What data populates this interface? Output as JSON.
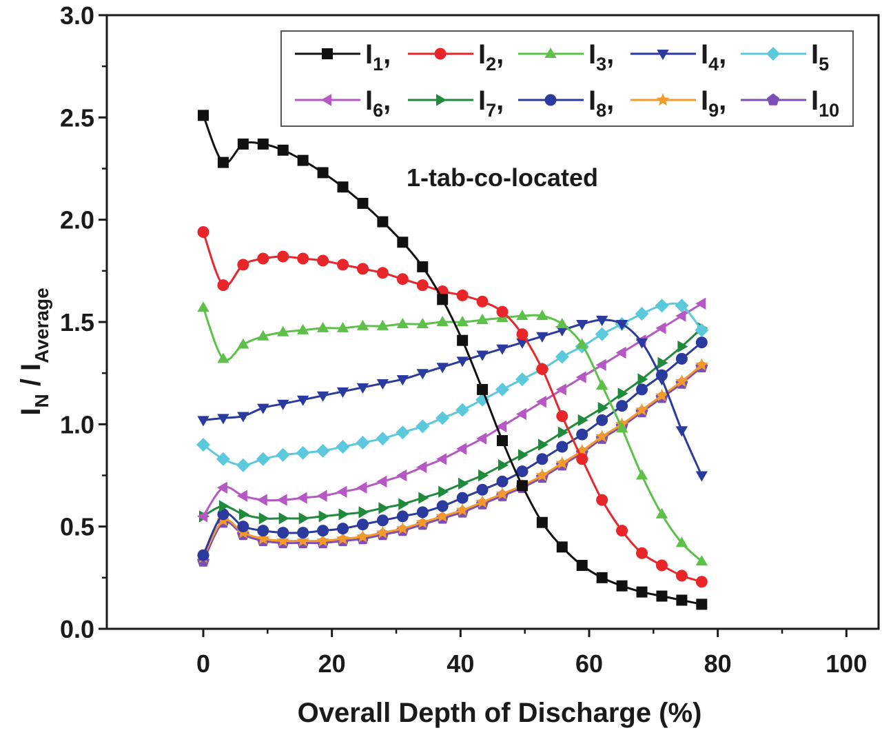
{
  "chart_data": {
    "type": "line",
    "title": "",
    "xlabel": "Overall Depth of Discharge (%)",
    "ylabel_main": "I",
    "ylabel_sub": "N",
    "ylabel_sep": " / I",
    "ylabel_sub2": "Average",
    "xlim": [
      -15,
      105
    ],
    "ylim": [
      0,
      3
    ],
    "xticks": [
      0,
      20,
      40,
      60,
      80,
      100
    ],
    "yticks": [
      0.0,
      0.5,
      1.0,
      1.5,
      2.0,
      2.5,
      3.0
    ],
    "xtick_labels": [
      "0",
      "20",
      "40",
      "60",
      "80",
      "100"
    ],
    "ytick_labels": [
      "0.0",
      "0.5",
      "1.0",
      "1.5",
      "2.0",
      "2.5",
      "3.0"
    ],
    "grid": false,
    "legend_position": "top-right",
    "annotation": "1-tab-co-located",
    "x": [
      0,
      3.1,
      6.2,
      9.3,
      12.4,
      15.5,
      18.6,
      21.7,
      24.8,
      27.9,
      31,
      34.1,
      37.2,
      40.3,
      43.4,
      46.5,
      49.6,
      52.7,
      55.8,
      58.9,
      62,
      65.1,
      68.2,
      71.3,
      74.4,
      77.5
    ],
    "series": [
      {
        "name": "I",
        "sub": "1",
        "sep": ",",
        "color": "#111111",
        "marker": "square",
        "values": [
          2.51,
          2.28,
          2.37,
          2.37,
          2.34,
          2.29,
          2.23,
          2.16,
          2.08,
          1.99,
          1.89,
          1.77,
          1.61,
          1.41,
          1.17,
          0.92,
          0.7,
          0.52,
          0.4,
          0.31,
          0.25,
          0.21,
          0.18,
          0.16,
          0.14,
          0.12
        ]
      },
      {
        "name": "I",
        "sub": "2",
        "sep": ",",
        "color": "#e8262a",
        "marker": "circle",
        "values": [
          1.94,
          1.68,
          1.78,
          1.81,
          1.82,
          1.81,
          1.8,
          1.78,
          1.76,
          1.74,
          1.71,
          1.68,
          1.65,
          1.63,
          1.6,
          1.55,
          1.44,
          1.27,
          1.04,
          0.83,
          0.63,
          0.48,
          0.37,
          0.31,
          0.26,
          0.23
        ]
      },
      {
        "name": "I",
        "sub": "3",
        "sep": ",",
        "color": "#5cc049",
        "marker": "triangle-up",
        "values": [
          1.57,
          1.32,
          1.39,
          1.43,
          1.45,
          1.46,
          1.47,
          1.47,
          1.48,
          1.48,
          1.49,
          1.49,
          1.5,
          1.5,
          1.51,
          1.52,
          1.53,
          1.53,
          1.49,
          1.39,
          1.19,
          0.98,
          0.75,
          0.56,
          0.42,
          0.33
        ]
      },
      {
        "name": "I",
        "sub": "4",
        "sep": ",",
        "color": "#2a3a9e",
        "marker": "triangle-down",
        "values": [
          1.02,
          1.03,
          1.04,
          1.08,
          1.1,
          1.12,
          1.14,
          1.16,
          1.18,
          1.2,
          1.22,
          1.25,
          1.28,
          1.31,
          1.34,
          1.37,
          1.4,
          1.43,
          1.46,
          1.49,
          1.51,
          1.49,
          1.4,
          1.22,
          0.97,
          0.75
        ]
      },
      {
        "name": "I",
        "sub": "5",
        "sep": "",
        "color": "#5bc8dc",
        "marker": "diamond",
        "values": [
          0.9,
          0.83,
          0.8,
          0.83,
          0.85,
          0.86,
          0.87,
          0.89,
          0.91,
          0.93,
          0.96,
          0.99,
          1.03,
          1.07,
          1.12,
          1.17,
          1.22,
          1.27,
          1.33,
          1.38,
          1.44,
          1.49,
          1.54,
          1.58,
          1.58,
          1.46
        ]
      },
      {
        "name": "I",
        "sub": "6",
        "sep": ",",
        "color": "#b658c4",
        "marker": "triangle-left",
        "values": [
          0.55,
          0.69,
          0.65,
          0.63,
          0.63,
          0.64,
          0.65,
          0.67,
          0.69,
          0.72,
          0.75,
          0.79,
          0.83,
          0.88,
          0.93,
          0.99,
          1.05,
          1.11,
          1.17,
          1.23,
          1.29,
          1.35,
          1.41,
          1.47,
          1.53,
          1.59
        ]
      },
      {
        "name": "I",
        "sub": "7",
        "sep": ",",
        "color": "#1f8a3c",
        "marker": "triangle-right",
        "values": [
          0.55,
          0.6,
          0.56,
          0.54,
          0.54,
          0.54,
          0.55,
          0.56,
          0.57,
          0.59,
          0.61,
          0.64,
          0.67,
          0.71,
          0.75,
          0.8,
          0.85,
          0.9,
          0.96,
          1.02,
          1.08,
          1.15,
          1.22,
          1.3,
          1.38,
          1.47
        ]
      },
      {
        "name": "I",
        "sub": "8",
        "sep": ",",
        "color": "#2a3a9e",
        "marker": "circle",
        "values": [
          0.36,
          0.56,
          0.5,
          0.48,
          0.47,
          0.47,
          0.48,
          0.49,
          0.51,
          0.53,
          0.55,
          0.57,
          0.6,
          0.64,
          0.68,
          0.72,
          0.77,
          0.83,
          0.89,
          0.95,
          1.02,
          1.09,
          1.17,
          1.24,
          1.32,
          1.4
        ]
      },
      {
        "name": "I",
        "sub": "9",
        "sep": ",",
        "color": "#f39a2a",
        "marker": "star",
        "values": [
          0.35,
          0.53,
          0.47,
          0.44,
          0.43,
          0.43,
          0.43,
          0.44,
          0.45,
          0.47,
          0.49,
          0.52,
          0.55,
          0.58,
          0.62,
          0.66,
          0.7,
          0.75,
          0.81,
          0.87,
          0.94,
          1.0,
          1.07,
          1.14,
          1.21,
          1.29
        ]
      },
      {
        "name": "I",
        "sub": "10",
        "sep": "",
        "color": "#7a4fb8",
        "marker": "pentagon",
        "values": [
          0.33,
          0.52,
          0.46,
          0.43,
          0.42,
          0.42,
          0.42,
          0.43,
          0.44,
          0.46,
          0.48,
          0.51,
          0.54,
          0.57,
          0.61,
          0.65,
          0.69,
          0.74,
          0.8,
          0.86,
          0.93,
          0.99,
          1.06,
          1.13,
          1.2,
          1.28
        ]
      }
    ]
  }
}
